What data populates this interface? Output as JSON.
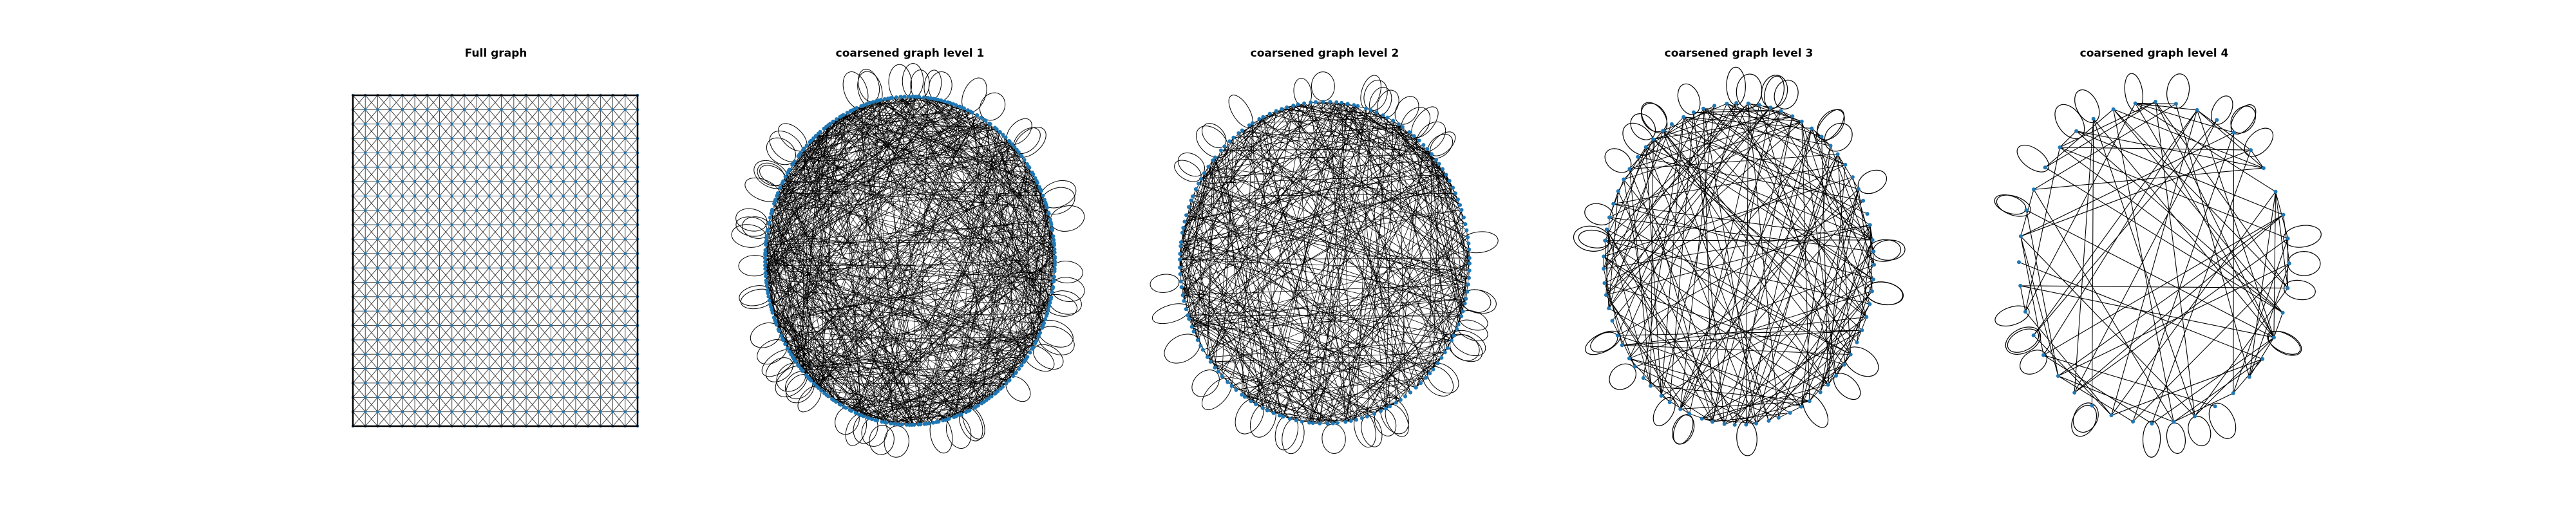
{
  "figure": {
    "panels": [
      {
        "title": "Full graph",
        "layout": "grid",
        "grid_size": 24
      },
      {
        "title": "coarsened graph level 1",
        "layout": "circle",
        "nodes": 300,
        "edges": 700,
        "loops": 58
      },
      {
        "title": "coarsened graph level 2",
        "layout": "circle",
        "nodes": 150,
        "edges": 420,
        "loops": 42
      },
      {
        "title": "coarsened graph level 3",
        "layout": "circle",
        "nodes": 75,
        "edges": 210,
        "loops": 32
      },
      {
        "title": "coarsened graph level 4",
        "layout": "circle",
        "nodes": 40,
        "edges": 95,
        "loops": 26
      }
    ],
    "colors": {
      "node": "#1f77b4",
      "edge": "#000000",
      "background": "#ffffff"
    }
  }
}
